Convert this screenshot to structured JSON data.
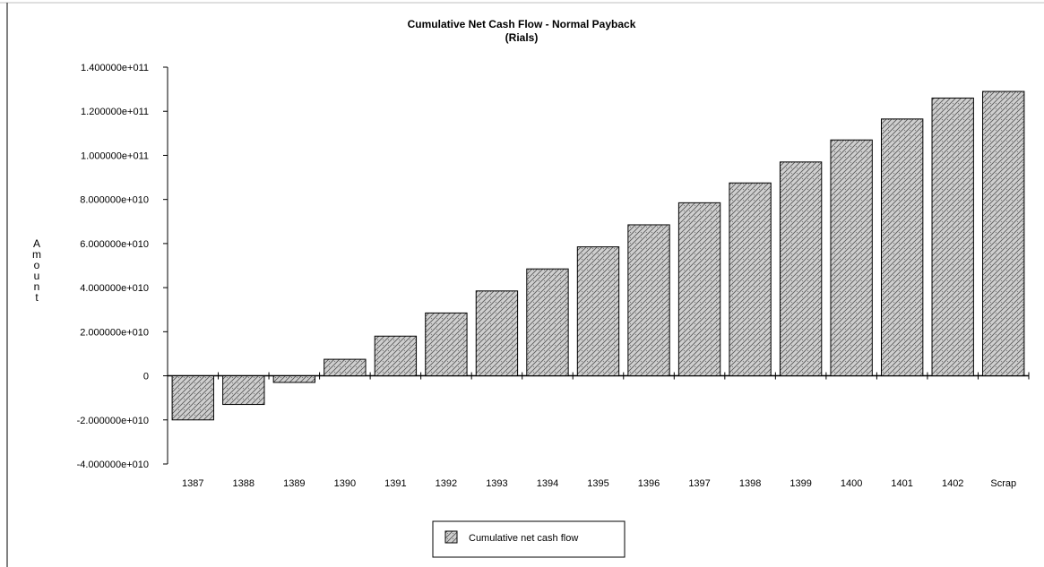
{
  "chart_data": {
    "type": "bar",
    "title": "Cumulative Net Cash Flow - Normal Payback",
    "subtitle": "(Rials)",
    "xlabel": "",
    "ylabel": "Amount",
    "categories": [
      "1387",
      "1388",
      "1389",
      "1390",
      "1391",
      "1392",
      "1393",
      "1394",
      "1395",
      "1396",
      "1397",
      "1398",
      "1399",
      "1400",
      "1401",
      "1402",
      "Scrap"
    ],
    "series": [
      {
        "name": "Cumulative net cash flow",
        "values": [
          -20000000000,
          -13000000000,
          -3000000000,
          7500000000,
          18000000000,
          28500000000,
          38500000000,
          48500000000,
          58500000000,
          68500000000,
          78500000000,
          87500000000,
          97000000000,
          107000000000,
          116500000000,
          126000000000,
          129000000000
        ]
      }
    ],
    "ylim": [
      -40000000000,
      140000000000
    ],
    "yticks": [
      {
        "value": 140000000000,
        "label": "1.400000e+011"
      },
      {
        "value": 120000000000,
        "label": "1.200000e+011"
      },
      {
        "value": 100000000000,
        "label": "1.000000e+011"
      },
      {
        "value": 80000000000,
        "label": "8.000000e+010"
      },
      {
        "value": 60000000000,
        "label": "6.000000e+010"
      },
      {
        "value": 40000000000,
        "label": "4.000000e+010"
      },
      {
        "value": 20000000000,
        "label": "2.000000e+010"
      },
      {
        "value": 0,
        "label": "0"
      },
      {
        "value": -20000000000,
        "label": "-2.000000e+010"
      },
      {
        "value": -40000000000,
        "label": "-4.000000e+010"
      }
    ],
    "grid": false,
    "legend_position": "bottom-center",
    "colors": {
      "bar_fill": "#c8c8c8",
      "bar_stroke": "#000000",
      "axis": "#000000",
      "frame": "#000000"
    }
  }
}
